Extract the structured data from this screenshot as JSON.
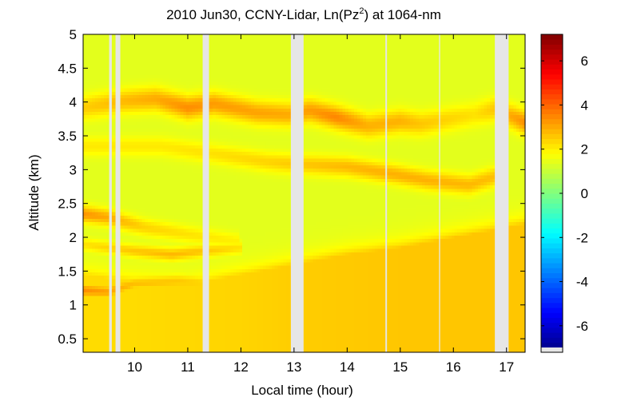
{
  "chart_data": {
    "type": "heatmap",
    "title": {
      "prefix": "2010 Jun30, CCNY-Lidar, Ln(Pz",
      "superscript": "2",
      "suffix": ") at 1064-nm"
    },
    "xlabel": "Local time (hour)",
    "ylabel": "Altitude (km)",
    "xlim": [
      9.03,
      17.35
    ],
    "ylim": [
      0.3,
      5.0
    ],
    "xticks": [
      10,
      11,
      12,
      13,
      14,
      15,
      16,
      17
    ],
    "yticks": [
      0.5,
      1,
      1.5,
      2,
      2.5,
      3,
      3.5,
      4,
      4.5,
      5
    ],
    "colorbar": {
      "colormap": "jet",
      "range": [
        -7.2,
        7.2
      ],
      "ticks": [
        6,
        4,
        2,
        0,
        -2,
        -4,
        -6
      ],
      "tick_labels": [
        "6",
        "4",
        "2",
        "0",
        "-2",
        "-4",
        "-6"
      ]
    },
    "data_gaps_hours": [
      [
        9.52,
        9.57
      ],
      [
        9.64,
        9.73
      ],
      [
        11.28,
        11.4
      ],
      [
        12.94,
        13.18
      ],
      [
        14.72,
        14.75
      ],
      [
        15.73,
        15.75
      ],
      [
        16.78,
        17.04
      ]
    ],
    "background_level": 1.4,
    "boundary_layer": [
      {
        "t": 9.03,
        "top": 1.45,
        "value": 2.3
      },
      {
        "t": 10.0,
        "top": 1.35,
        "value": 2.3
      },
      {
        "t": 11.0,
        "top": 1.3,
        "value": 2.35
      },
      {
        "t": 12.0,
        "top": 1.45,
        "value": 2.4
      },
      {
        "t": 13.0,
        "top": 1.6,
        "value": 2.5
      },
      {
        "t": 14.0,
        "top": 1.75,
        "value": 2.55
      },
      {
        "t": 15.0,
        "top": 1.85,
        "value": 2.6
      },
      {
        "t": 16.0,
        "top": 2.0,
        "value": 2.6
      },
      {
        "t": 17.35,
        "top": 2.2,
        "value": 2.6
      }
    ],
    "aerosol_layers": [
      {
        "name": "upper",
        "width_km": 0.17,
        "points": [
          {
            "t": 9.03,
            "alt": 3.92,
            "value": 2.5
          },
          {
            "t": 9.8,
            "alt": 4.02,
            "value": 2.8
          },
          {
            "t": 10.4,
            "alt": 4.05,
            "value": 3.0
          },
          {
            "t": 11.0,
            "alt": 3.92,
            "value": 3.4
          },
          {
            "t": 11.5,
            "alt": 3.98,
            "value": 3.2
          },
          {
            "t": 12.3,
            "alt": 3.85,
            "value": 3.1
          },
          {
            "t": 12.9,
            "alt": 3.82,
            "value": 3.0
          },
          {
            "t": 13.3,
            "alt": 3.88,
            "value": 3.2
          },
          {
            "t": 13.8,
            "alt": 3.78,
            "value": 3.5
          },
          {
            "t": 14.4,
            "alt": 3.65,
            "value": 2.9
          },
          {
            "t": 15.0,
            "alt": 3.72,
            "value": 2.9
          },
          {
            "t": 15.4,
            "alt": 3.68,
            "value": 2.6
          },
          {
            "t": 16.4,
            "alt": 3.82,
            "value": 2.2
          },
          {
            "t": 16.78,
            "alt": 3.9,
            "value": 2.6
          },
          {
            "t": 17.35,
            "alt": 3.7,
            "value": 3.4
          }
        ]
      },
      {
        "name": "middle",
        "width_km": 0.14,
        "points": [
          {
            "t": 9.03,
            "alt": 3.35,
            "value": 2.1
          },
          {
            "t": 10.5,
            "alt": 3.35,
            "value": 2.1
          },
          {
            "t": 11.4,
            "alt": 3.25,
            "value": 2.2
          },
          {
            "t": 12.5,
            "alt": 3.12,
            "value": 2.4
          },
          {
            "t": 13.2,
            "alt": 3.08,
            "value": 2.6
          },
          {
            "t": 14.0,
            "alt": 3.05,
            "value": 2.8
          },
          {
            "t": 14.8,
            "alt": 2.95,
            "value": 2.9
          },
          {
            "t": 15.5,
            "alt": 2.85,
            "value": 2.9
          },
          {
            "t": 16.3,
            "alt": 2.78,
            "value": 2.8
          },
          {
            "t": 16.78,
            "alt": 2.9,
            "value": 2.7
          }
        ]
      },
      {
        "name": "lower",
        "width_km": 0.12,
        "points": [
          {
            "t": 9.03,
            "alt": 2.35,
            "value": 3.3
          },
          {
            "t": 9.5,
            "alt": 2.3,
            "value": 3.0
          },
          {
            "t": 10.2,
            "alt": 2.15,
            "value": 2.4
          },
          {
            "t": 11.0,
            "alt": 2.05,
            "value": 2.2
          },
          {
            "t": 11.9,
            "alt": 1.95,
            "value": 2.0
          }
        ]
      },
      {
        "name": "low-2",
        "width_km": 0.09,
        "points": [
          {
            "t": 9.03,
            "alt": 1.9,
            "value": 2.2
          },
          {
            "t": 10.0,
            "alt": 1.8,
            "value": 2.6
          },
          {
            "t": 10.7,
            "alt": 1.75,
            "value": 2.8
          },
          {
            "t": 11.3,
            "alt": 1.8,
            "value": 2.6
          },
          {
            "t": 12.0,
            "alt": 1.85,
            "value": 2.2
          }
        ]
      },
      {
        "name": "low-3",
        "width_km": 0.1,
        "points": [
          {
            "t": 9.03,
            "alt": 1.22,
            "value": 3.4
          },
          {
            "t": 9.5,
            "alt": 1.2,
            "value": 3.1
          },
          {
            "t": 10.0,
            "alt": 1.32,
            "value": 2.7
          },
          {
            "t": 10.8,
            "alt": 1.35,
            "value": 2.6
          },
          {
            "t": 11.3,
            "alt": 1.33,
            "value": 2.4
          }
        ]
      }
    ]
  }
}
